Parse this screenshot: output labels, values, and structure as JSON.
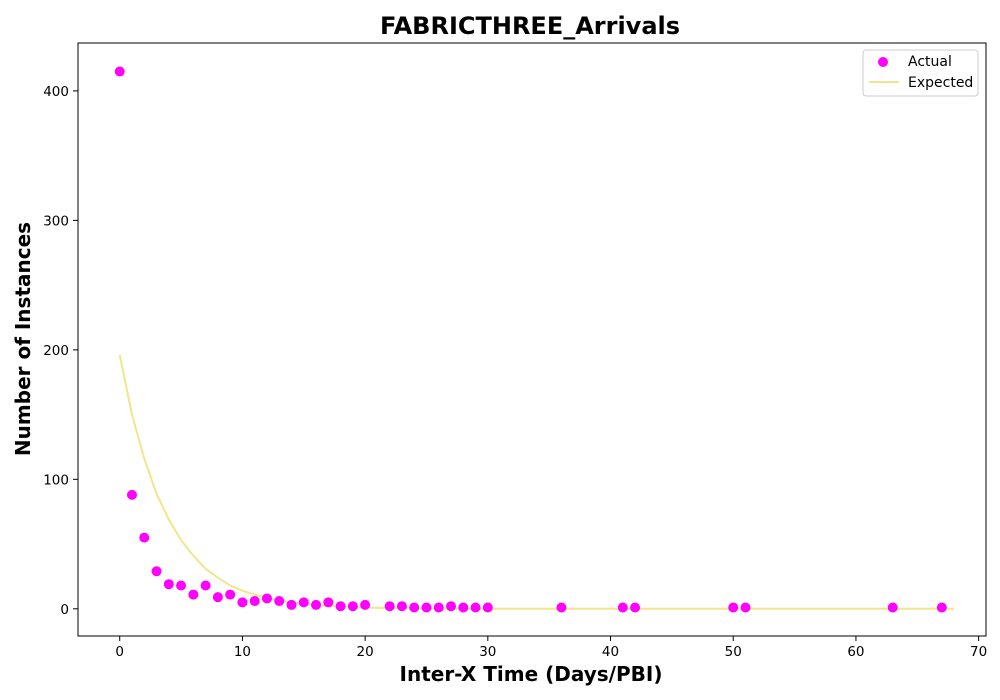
{
  "chart_data": {
    "type": "scatter",
    "title": "FABRICTHREE_Arrivals",
    "xlabel": "Inter-X Time (Days/PBI)",
    "ylabel": "Number of Instances",
    "xlim": [
      -3.4,
      70.6
    ],
    "ylim": [
      -21,
      437
    ],
    "x_ticks": [
      0,
      10,
      20,
      30,
      40,
      50,
      60,
      70
    ],
    "y_ticks": [
      0,
      100,
      200,
      300,
      400
    ],
    "legend_position": "top-right",
    "grid": false,
    "series": [
      {
        "name": "Actual",
        "kind": "scatter",
        "color": "#ff00ff",
        "points": [
          [
            0,
            415
          ],
          [
            1,
            88
          ],
          [
            2,
            55
          ],
          [
            3,
            29
          ],
          [
            4,
            19
          ],
          [
            5,
            18
          ],
          [
            6,
            11
          ],
          [
            7,
            18
          ],
          [
            8,
            9
          ],
          [
            9,
            11
          ],
          [
            10,
            5
          ],
          [
            11,
            6
          ],
          [
            12,
            8
          ],
          [
            13,
            6
          ],
          [
            14,
            3
          ],
          [
            15,
            5
          ],
          [
            16,
            3
          ],
          [
            17,
            5
          ],
          [
            18,
            2
          ],
          [
            19,
            2
          ],
          [
            20,
            3
          ],
          [
            22,
            2
          ],
          [
            23,
            2
          ],
          [
            24,
            1
          ],
          [
            25,
            1
          ],
          [
            26,
            1
          ],
          [
            27,
            2
          ],
          [
            28,
            1
          ],
          [
            29,
            1
          ],
          [
            30,
            1
          ],
          [
            36,
            1
          ],
          [
            41,
            1
          ],
          [
            42,
            1
          ],
          [
            50,
            1
          ],
          [
            51,
            1
          ],
          [
            63,
            1
          ],
          [
            67,
            1
          ]
        ]
      },
      {
        "name": "Expected",
        "kind": "line",
        "color": "#f0e68c",
        "x": [
          0,
          1,
          2,
          3,
          4,
          5,
          6,
          7,
          8,
          9,
          10,
          11,
          12,
          13,
          14,
          15,
          16,
          17,
          18,
          19,
          20,
          22,
          24,
          26,
          28,
          30,
          35,
          40,
          45,
          50,
          55,
          60,
          65,
          68
        ],
        "y": [
          196,
          150,
          116,
          89,
          69,
          53,
          41,
          31,
          24,
          18,
          14,
          11,
          8.5,
          6.5,
          5,
          3.8,
          2.9,
          2.3,
          1.7,
          1.3,
          1.0,
          0.6,
          0.4,
          0.2,
          0.1,
          0.1,
          0,
          0,
          0,
          0,
          0,
          0,
          0,
          0
        ]
      }
    ]
  }
}
